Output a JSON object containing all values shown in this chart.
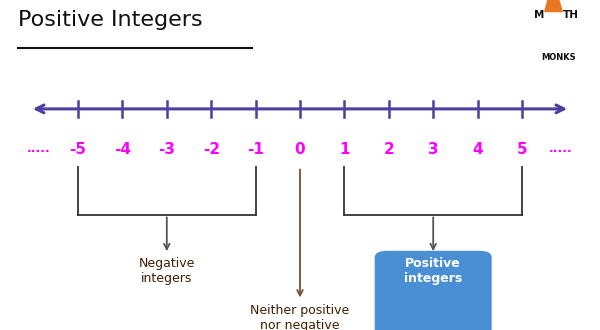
{
  "title": "Positive Integers",
  "bg_color": "#ffffff",
  "line_color": "#4B3FA0",
  "tick_color": "#4B3FA0",
  "numbers": [
    -5,
    -4,
    -3,
    -2,
    -1,
    0,
    1,
    2,
    3,
    4,
    5
  ],
  "number_color": "#FF00FF",
  "dots_color": "#FF00FF",
  "negative_label": "Negative\nintegers",
  "positive_label": "Positive\nintegers",
  "zero_label": "Neither positive\nnor negative",
  "negative_label_color": "#3d2000",
  "zero_label_color": "#3d2000",
  "positive_label_color": "#ffffff",
  "positive_box_color": "#4a8fd4",
  "arrow_color_neg": "#555555",
  "arrow_color_zero": "#7B4F2E",
  "arrow_color_pos": "#555555",
  "mathmonks_triangle_color": "#E87722",
  "mathmonks_text_color": "#111111",
  "title_underline_color": "#111111"
}
